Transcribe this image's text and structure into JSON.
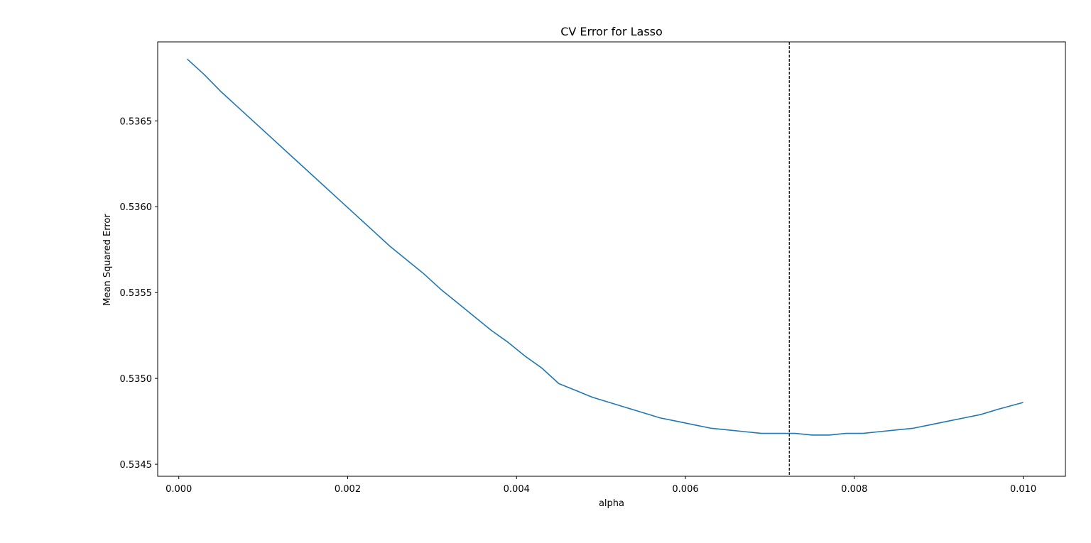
{
  "chart_data": {
    "type": "line",
    "title": "CV Error for Lasso",
    "xlabel": "alpha",
    "ylabel": "Mean Squared Error",
    "xlim": [
      -0.00025,
      0.0105
    ],
    "ylim": [
      0.53443,
      0.53696
    ],
    "grid": false,
    "x_ticks": [
      {
        "value": 0.0,
        "label": "0.000"
      },
      {
        "value": 0.002,
        "label": "0.002"
      },
      {
        "value": 0.004,
        "label": "0.004"
      },
      {
        "value": 0.006,
        "label": "0.006"
      },
      {
        "value": 0.008,
        "label": "0.008"
      },
      {
        "value": 0.01,
        "label": "0.010"
      }
    ],
    "y_ticks": [
      {
        "value": 0.5345,
        "label": "0.5345"
      },
      {
        "value": 0.535,
        "label": "0.5350"
      },
      {
        "value": 0.5355,
        "label": "0.5355"
      },
      {
        "value": 0.536,
        "label": "0.5360"
      },
      {
        "value": 0.5365,
        "label": "0.5365"
      }
    ],
    "series": [
      {
        "color": "#1f77b4",
        "x": [
          0.0001,
          0.0003,
          0.0005,
          0.0007,
          0.0009,
          0.0011,
          0.0013,
          0.0015,
          0.0017,
          0.0019,
          0.0021,
          0.0023,
          0.0025,
          0.0027,
          0.0029,
          0.0031,
          0.0033,
          0.0035,
          0.0037,
          0.0039,
          0.0041,
          0.0043,
          0.0045,
          0.0047,
          0.0049,
          0.0051,
          0.0053,
          0.0055,
          0.0057,
          0.0059,
          0.0061,
          0.0063,
          0.0065,
          0.0067,
          0.0069,
          0.0071,
          0.0073,
          0.0075,
          0.0077,
          0.0079,
          0.0081,
          0.0083,
          0.0085,
          0.0087,
          0.0089,
          0.0091,
          0.0093,
          0.0095,
          0.0097,
          0.01
        ],
        "y": [
          0.53686,
          0.53677,
          0.53667,
          0.53658,
          0.53649,
          0.5364,
          0.53631,
          0.53622,
          0.53613,
          0.53604,
          0.53595,
          0.53586,
          0.53577,
          0.53569,
          0.53561,
          0.53552,
          0.53544,
          0.53536,
          0.53528,
          0.53521,
          0.53513,
          0.53506,
          0.53497,
          0.53493,
          0.53489,
          0.53486,
          0.53483,
          0.5348,
          0.53477,
          0.53475,
          0.53473,
          0.53471,
          0.5347,
          0.53469,
          0.53468,
          0.53468,
          0.53468,
          0.53467,
          0.53467,
          0.53468,
          0.53468,
          0.53469,
          0.5347,
          0.53471,
          0.53473,
          0.53475,
          0.53477,
          0.53479,
          0.53482,
          0.53486
        ]
      }
    ],
    "vline": {
      "x": 0.00723,
      "color": "#000000",
      "style": "dashed"
    }
  }
}
